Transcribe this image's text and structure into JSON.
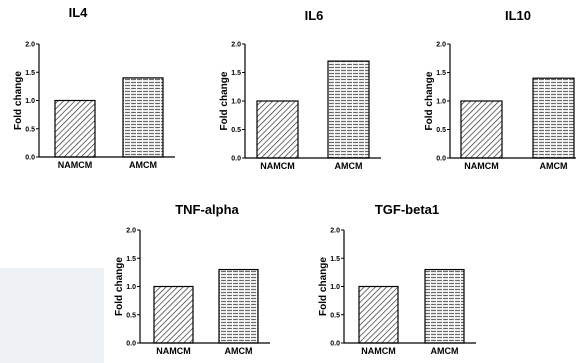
{
  "chart_data": [
    {
      "type": "bar",
      "title": "IL4",
      "ylabel": "Fold change",
      "categories": [
        "NAMCM",
        "AMCM"
      ],
      "values": [
        1.0,
        1.4
      ],
      "ylim": [
        0,
        2.0
      ],
      "yticks": [
        "0.0",
        "0.5",
        "1.0",
        "1.5",
        "2.0"
      ]
    },
    {
      "type": "bar",
      "title": "IL6",
      "ylabel": "Fold change",
      "categories": [
        "NAMCM",
        "AMCM"
      ],
      "values": [
        1.0,
        1.7
      ],
      "ylim": [
        0,
        2.0
      ],
      "yticks": [
        "0.0",
        "0.5",
        "1.0",
        "1.5",
        "2.0"
      ]
    },
    {
      "type": "bar",
      "title": "IL10",
      "ylabel": "Fold change",
      "categories": [
        "NAMCM",
        "AMCM"
      ],
      "values": [
        1.0,
        1.4
      ],
      "ylim": [
        0,
        2.0
      ],
      "yticks": [
        "0.0",
        "0.5",
        "1.0",
        "1.5",
        "2.0"
      ]
    },
    {
      "type": "bar",
      "title": "TNF-alpha",
      "ylabel": "Fold change",
      "categories": [
        "NAMCM",
        "AMCM"
      ],
      "values": [
        1.0,
        1.3
      ],
      "ylim": [
        0,
        2.0
      ],
      "yticks": [
        "0.0",
        "0.5",
        "1.0",
        "1.5",
        "2.0"
      ]
    },
    {
      "type": "bar",
      "title": "TGF-beta1",
      "ylabel": "Fold change",
      "categories": [
        "NAMCM",
        "AMCM"
      ],
      "values": [
        1.0,
        1.3
      ],
      "ylim": [
        0,
        2.0
      ],
      "yticks": [
        "0.0",
        "0.5",
        "1.0",
        "1.5",
        "2.0"
      ]
    }
  ],
  "colors": {
    "bar_stroke": "#000000",
    "diagonal_hatch": "#222222",
    "horizontal_hatch": "#6a6a6a"
  }
}
